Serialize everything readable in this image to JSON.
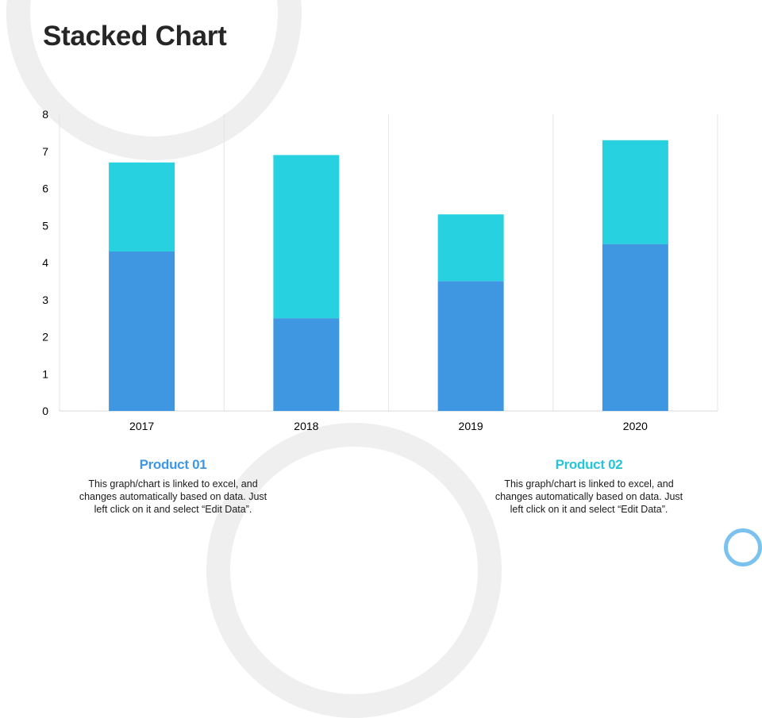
{
  "slide": {
    "title": "Stacked Chart"
  },
  "colors": {
    "product_01": "#3f97e2",
    "product_02": "#27d1e0",
    "product_01_heading": "#3f97e2",
    "product_02_heading": "#27c3d6",
    "gridline": "#e6e6e6",
    "decoration_ring": "#efefef",
    "corner_ring": "#7cc2ee"
  },
  "chart_data": {
    "type": "bar",
    "stacked": true,
    "categories": [
      "2017",
      "2018",
      "2019",
      "2020"
    ],
    "series": [
      {
        "name": "Product 01",
        "values": [
          4.3,
          2.5,
          3.5,
          4.5
        ]
      },
      {
        "name": "Product 02",
        "values": [
          2.4,
          4.4,
          1.8,
          2.8
        ]
      }
    ],
    "ylim": [
      0,
      8
    ],
    "yticks": [
      "0",
      "1",
      "2",
      "3",
      "4",
      "5",
      "6",
      "7",
      "8"
    ],
    "grid": "vertical category separators",
    "title": "",
    "xlabel": "",
    "ylabel": ""
  },
  "products": [
    {
      "title": "Product 01",
      "description": "This graph/chart is linked to excel, and changes automatically based on data. Just left click on it and select “Edit Data”."
    },
    {
      "title": "Product 02",
      "description": "This graph/chart is linked to excel, and changes automatically based on data. Just left click on it and select “Edit Data”."
    }
  ]
}
